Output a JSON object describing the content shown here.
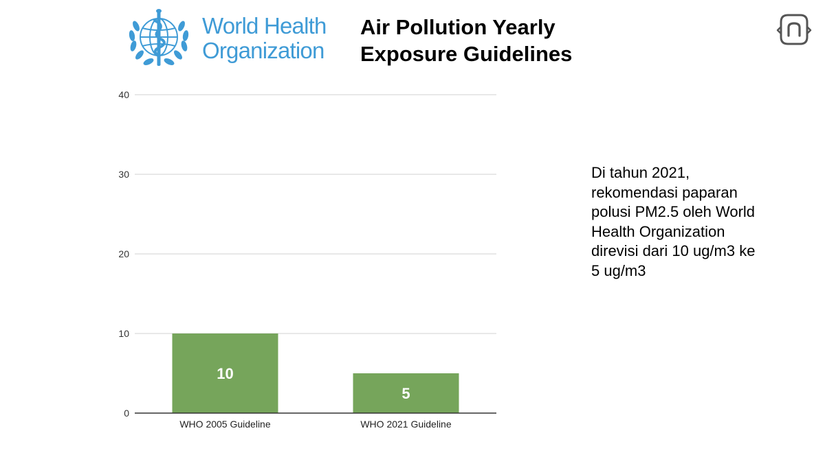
{
  "logo": {
    "org_line1": "World Health",
    "org_line2": "Organization",
    "color": "#3f9bd6"
  },
  "title": {
    "line1": "Air Pollution Yearly",
    "line2": "Exposure Guidelines"
  },
  "brand_icon": {
    "name": "rounded-n-logo-icon",
    "color": "#555555"
  },
  "note": {
    "lines": [
      "Di tahun 2021,",
      "rekomendasi paparan",
      "polusi PM2.5 oleh World",
      "Health Organization",
      "direvisi dari 10 ug/m3 ke",
      "5 ug/m3"
    ]
  },
  "chart_data": {
    "type": "bar",
    "title": "Air Pollution Yearly Exposure Guidelines",
    "xlabel": "",
    "ylabel": "",
    "categories": [
      "WHO 2005 Guideline",
      "WHO 2021 Guideline"
    ],
    "values": [
      10,
      5
    ],
    "data_labels": [
      "10",
      "5"
    ],
    "ylim": [
      0,
      40
    ],
    "yticks": [
      0,
      10,
      20,
      30,
      40
    ],
    "ytick_labels": [
      "0",
      "10",
      "20",
      "30",
      "40"
    ],
    "grid": true,
    "legend": "none",
    "bar_color": "#76a55b",
    "grid_color": "#d0d0d0",
    "axis_color": "#333333"
  }
}
